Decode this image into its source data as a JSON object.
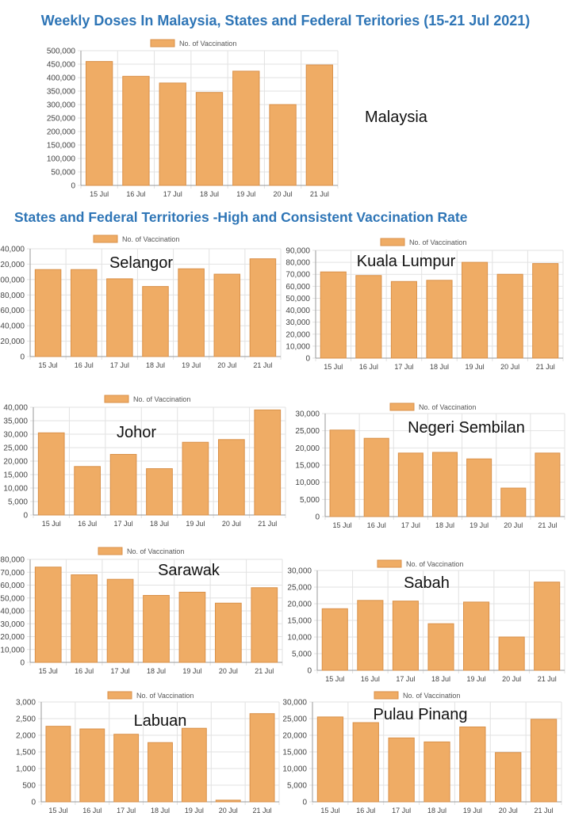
{
  "main_title": "Weekly Doses In Malaysia,  States and Federal Teritories (15-21 Jul 2021)",
  "section_title": "States and Federal Territories -High and Consistent  Vaccination  Rate",
  "colors": {
    "bar": "#efac65",
    "bar_border": "#d9914a",
    "title": "#2e75b6"
  },
  "chart_data": [
    {
      "type": "bar",
      "title": "Malaysia",
      "legend": "No. of Vaccination",
      "categories": [
        "15 Jul",
        "16 Jul",
        "17 Jul",
        "18 Jul",
        "19 Jul",
        "20 Jul",
        "21 Jul"
      ],
      "values": [
        460000,
        405000,
        380000,
        345000,
        424000,
        300000,
        447000
      ],
      "ylim": [
        0,
        500000
      ],
      "ystep": 50000,
      "grid": true,
      "legend_position": "top"
    },
    {
      "type": "bar",
      "title": "Selangor",
      "legend": "No. of Vaccination",
      "categories": [
        "15 Jul",
        "16 Jul",
        "17 Jul",
        "18 Jul",
        "19 Jul",
        "20 Jul",
        "21 Jul"
      ],
      "values": [
        113000,
        113000,
        101000,
        91000,
        114000,
        107000,
        127000
      ],
      "ylim": [
        0,
        140000
      ],
      "ystep": 20000,
      "grid": true,
      "legend_position": "top"
    },
    {
      "type": "bar",
      "title": "Kuala Lumpur",
      "legend": "No. of Vaccination",
      "categories": [
        "15 Jul",
        "16 Jul",
        "17 Jul",
        "18 Jul",
        "19 Jul",
        "20 Jul",
        "21 Jul"
      ],
      "values": [
        72000,
        69000,
        64000,
        65000,
        80000,
        70000,
        79000
      ],
      "ylim": [
        0,
        90000
      ],
      "ystep": 10000,
      "grid": true,
      "legend_position": "top"
    },
    {
      "type": "bar",
      "title": "Johor",
      "legend": "No. of Vaccination",
      "categories": [
        "15 Jul",
        "16 Jul",
        "17 Jul",
        "18 Jul",
        "19 Jul",
        "20 Jul",
        "21 Jul"
      ],
      "values": [
        30500,
        18000,
        22500,
        17200,
        27000,
        28000,
        39000
      ],
      "ylim": [
        0,
        40000
      ],
      "ystep": 5000,
      "grid": true,
      "legend_position": "top"
    },
    {
      "type": "bar",
      "title": "Negeri Sembilan",
      "legend": "No. of Vaccination",
      "categories": [
        "15 Jul",
        "16 Jul",
        "17 Jul",
        "18 Jul",
        "19 Jul",
        "20 Jul",
        "21 Jul"
      ],
      "values": [
        25200,
        22800,
        18500,
        18700,
        16800,
        8300,
        18500
      ],
      "ylim": [
        0,
        30000
      ],
      "ystep": 5000,
      "grid": true,
      "legend_position": "top"
    },
    {
      "type": "bar",
      "title": "Sarawak",
      "legend": "No. of Vaccination",
      "categories": [
        "15 Jul",
        "16 Jul",
        "17 Jul",
        "18 Jul",
        "19 Jul",
        "20 Jul",
        "21 Jul"
      ],
      "values": [
        74000,
        68000,
        64500,
        52000,
        54500,
        46000,
        58000
      ],
      "ylim": [
        0,
        80000
      ],
      "ystep": 10000,
      "grid": true,
      "legend_position": "top"
    },
    {
      "type": "bar",
      "title": "Sabah",
      "legend": "No. of Vaccination",
      "categories": [
        "15 Jul",
        "16 Jul",
        "17 Jul",
        "18 Jul",
        "19 Jul",
        "20 Jul",
        "21 Jul"
      ],
      "values": [
        18500,
        21000,
        20800,
        14000,
        20500,
        10000,
        26500
      ],
      "ylim": [
        0,
        30000
      ],
      "ystep": 5000,
      "grid": true,
      "legend_position": "top"
    },
    {
      "type": "bar",
      "title": "Labuan",
      "legend": "No. of Vaccination",
      "categories": [
        "15 Jul",
        "16 Jul",
        "17 Jul",
        "18 Jul",
        "19 Jul",
        "20 Jul",
        "21 Jul"
      ],
      "values": [
        2270,
        2190,
        2030,
        1780,
        2210,
        50,
        2650
      ],
      "ylim": [
        0,
        3000
      ],
      "ystep": 500,
      "grid": true,
      "legend_position": "top"
    },
    {
      "type": "bar",
      "title": "Pulau Pinang",
      "legend": "No. of Vaccination",
      "categories": [
        "15 Jul",
        "16 Jul",
        "17 Jul",
        "18 Jul",
        "19 Jul",
        "20 Jul",
        "21 Jul"
      ],
      "values": [
        25500,
        23800,
        19200,
        18000,
        22500,
        14800,
        24800
      ],
      "ylim": [
        0,
        30000
      ],
      "ystep": 5000,
      "grid": true,
      "legend_position": "top"
    }
  ]
}
